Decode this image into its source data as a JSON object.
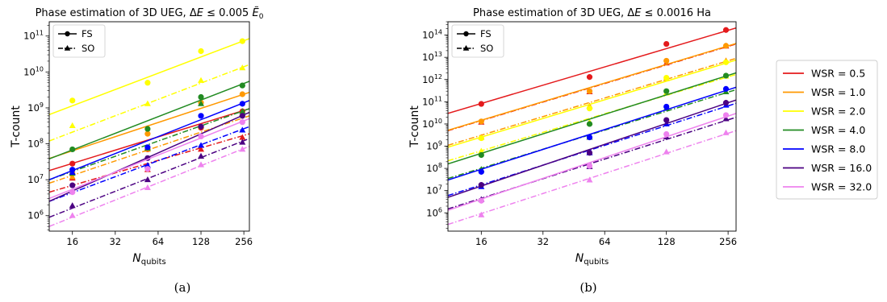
{
  "chart_data": [
    {
      "type": "scatter",
      "title": "Phase estimation of 3D UEG, ΔE ≤ 0.005 Ẽ₀",
      "title_parts": {
        "prefix": "Phase estimation of 3D UEG, ",
        "delta": "Δ",
        "var": "E",
        "rel": " ≤ 0.005",
        "sym": "E",
        "sub": "0"
      },
      "xlabel": "N",
      "xlabel_sub": "qubits",
      "ylabel": "T-count",
      "xscale": "log2",
      "yscale": "log10",
      "xlim": [
        11,
        280
      ],
      "ylim": [
        370000.0,
        250000000000.0
      ],
      "xticks": [
        16,
        32,
        64,
        128,
        256
      ],
      "yticks": [
        1000000.0,
        10000000.0,
        100000000.0,
        1000000000.0,
        10000000000.0,
        100000000000.0
      ],
      "ytick_exponents": [
        "6",
        "7",
        "8",
        "9",
        "10",
        "11"
      ],
      "ytick_base": "10",
      "legend": {
        "position": "top-left",
        "entries": [
          {
            "label": "FS",
            "style": "solid",
            "marker": "circle"
          },
          {
            "label": "SO",
            "style": "dashdot",
            "marker": "triangle"
          }
        ]
      },
      "x": [
        16,
        54,
        128,
        250
      ],
      "series": [
        {
          "name": "WSR = 0.5",
          "color": "#e41a1c",
          "FS": {
            "points": [
              28000000.0,
              70000000.0,
              280000000.0,
              800000000.0
            ],
            "fit": [
              [
                11,
                18000000.0
              ],
              [
                280,
                950000000.0
              ]
            ]
          },
          "SO": {
            "points": [
              11000000.0,
              19000000.0,
              70000000.0,
              150000000.0
            ],
            "fit": [
              [
                11,
                4500000.0
              ],
              [
                280,
                190000000.0
              ]
            ]
          }
        },
        {
          "name": "WSR = 1.0",
          "color": "#ff9900",
          "FS": {
            "points": [
              15000000.0,
              190000000.0,
              1400000000.0,
              2400000000.0
            ],
            "fit": [
              [
                11,
                39000000.0
              ],
              [
                280,
                2700000000.0
              ]
            ]
          },
          "SO": {
            "points": [
              12000000.0,
              70000000.0,
              300000000.0,
              700000000.0
            ],
            "fit": [
              [
                11,
                8000000.0
              ],
              [
                280,
                600000000.0
              ]
            ]
          }
        },
        {
          "name": "WSR = 2.0",
          "color": "#ffff00",
          "FS": {
            "points": [
              1600000000.0,
              5000000000.0,
              38000000000.0,
              72000000000.0
            ],
            "fit": [
              [
                11,
                650000000.0
              ],
              [
                280,
                85000000000.0
              ]
            ]
          },
          "SO": {
            "points": [
              320000000.0,
              1300000000.0,
              5800000000.0,
              13000000000.0
            ],
            "fit": [
              [
                11,
                120000000.0
              ],
              [
                280,
                16000000000.0
              ]
            ]
          }
        },
        {
          "name": "WSR = 4.0",
          "color": "#228b22",
          "FS": {
            "points": [
              70000000.0,
              260000000.0,
              2000000000.0,
              4200000000.0
            ],
            "fit": [
              [
                11,
                38000000.0
              ],
              [
                280,
                5500000000.0
              ]
            ]
          },
          "SO": {
            "points": [
              15000000.0,
              75000000.0,
              1300000000.0,
              800000000.0
            ],
            "fit": [
              [
                11,
                10000000.0
              ],
              [
                280,
                950000000.0
              ]
            ]
          }
        },
        {
          "name": "WSR = 8.0",
          "color": "#0000ff",
          "FS": {
            "points": [
              19000000.0,
              80000000.0,
              600000000.0,
              1300000000.0
            ],
            "fit": [
              [
                11,
                10000000.0
              ],
              [
                280,
                1600000000.0
              ]
            ]
          },
          "SO": {
            "points": [
              16000000.0,
              25000000.0,
              90000000.0,
              240000000.0
            ],
            "fit": [
              [
                11,
                2500000.0
              ],
              [
                280,
                300000000.0
              ]
            ]
          }
        },
        {
          "name": "WSR = 16.0",
          "color": "#4b0082",
          "FS": {
            "points": [
              7000000.0,
              40000000.0,
              300000000.0,
              600000000.0
            ],
            "fit": [
              [
                11,
                2500000.0
              ],
              [
                280,
                750000000.0
              ]
            ]
          },
          "SO": {
            "points": [
              1900000.0,
              10000000.0,
              45000000.0,
              110000000.0
            ],
            "fit": [
              [
                11,
                900000.0
              ],
              [
                280,
                140000000.0
              ]
            ]
          }
        },
        {
          "name": "WSR = 32.0",
          "color": "#ee82ee",
          "FS": {
            "points": [
              4500000.0,
              20000000.0,
              160000000.0,
              400000000.0
            ],
            "fit": [
              [
                11,
                3000000.0
              ],
              [
                280,
                500000000.0
              ]
            ]
          },
          "SO": {
            "points": [
              1000000.0,
              6000000.0,
              26000000.0,
              70000000.0
            ],
            "fit": [
              [
                11,
                500000.0
              ],
              [
                280,
                85000000.0
              ]
            ]
          }
        }
      ]
    },
    {
      "type": "scatter",
      "title": "Phase estimation of 3D UEG, ΔE ≤ 0.0016 Ha",
      "title_parts": {
        "prefix": "Phase estimation of 3D UEG, ",
        "delta": "Δ",
        "var": "E",
        "rel": " ≤ 0.0016 Ha"
      },
      "xlabel": "N",
      "xlabel_sub": "qubits",
      "ylabel": "T-count",
      "xscale": "log2",
      "yscale": "log10",
      "xlim": [
        11,
        280
      ],
      "ylim": [
        150000.0,
        400000000000000.0
      ],
      "xticks": [
        16,
        32,
        64,
        128,
        256
      ],
      "yticks": [
        1000000.0,
        10000000.0,
        100000000.0,
        1000000000.0,
        10000000000.0,
        100000000000.0,
        1000000000000.0,
        10000000000000.0,
        100000000000000.0
      ],
      "ytick_exponents": [
        "6",
        "7",
        "8",
        "9",
        "10",
        "11",
        "12",
        "13",
        "14"
      ],
      "ytick_base": "10",
      "legend": {
        "position": "top-left",
        "entries": [
          {
            "label": "FS",
            "style": "solid",
            "marker": "circle"
          },
          {
            "label": "SO",
            "style": "dashdot",
            "marker": "triangle"
          }
        ]
      },
      "x": [
        16,
        54,
        128,
        250
      ],
      "series": [
        {
          "name": "WSR = 0.5",
          "color": "#e41a1c",
          "FS": {
            "points": [
              80000000000.0,
              1300000000000.0,
              40000000000000.0,
              170000000000000.0
            ],
            "fit": [
              [
                11,
                30000000000.0
              ],
              [
                280,
                210000000000000.0
              ]
            ]
          },
          "SO": {
            "points": [
              12000000000.0,
              280000000000.0,
              5500000000000.0,
              32000000000000.0
            ],
            "fit": [
              [
                11,
                5000000000.0
              ],
              [
                280,
                40000000000000.0
              ]
            ]
          }
        },
        {
          "name": "WSR = 1.0",
          "color": "#ff9900",
          "FS": {
            "points": [
              13000000000.0,
              300000000000.0,
              7000000000000.0,
              33000000000000.0
            ],
            "fit": [
              [
                11,
                5200000000.0
              ],
              [
                280,
                42000000000000.0
              ]
            ]
          },
          "SO": {
            "points": [
              2500000000.0,
              65000000000.0,
              1100000000000.0,
              7000000000000.0
            ],
            "fit": [
              [
                11,
                1100000000.0
              ],
              [
                280,
                9000000000000.0
              ]
            ]
          }
        },
        {
          "name": "WSR = 2.0",
          "color": "#ffff00",
          "FS": {
            "points": [
              2300000000.0,
              50000000000.0,
              1200000000000.0,
              6000000000000.0
            ],
            "fit": [
              [
                11,
                900000000.0
              ],
              [
                280,
                7500000000000.0
              ]
            ]
          },
          "SO": {
            "points": [
              600000000.0,
              12000000000.0,
              250000000000.0,
              1400000000000.0
            ],
            "fit": [
              [
                11,
                220000000.0
              ],
              [
                280,
                1700000000000.0
              ]
            ]
          }
        },
        {
          "name": "WSR = 4.0",
          "color": "#228b22",
          "FS": {
            "points": [
              400000000.0,
              10000000000.0,
              300000000000.0,
              1500000000000.0
            ],
            "fit": [
              [
                11,
                160000000.0
              ],
              [
                280,
                2000000000000.0
              ]
            ]
          },
          "SO": {
            "points": [
              90000000.0,
              2500000000.0,
              50000000000.0,
              280000000000.0
            ],
            "fit": [
              [
                11,
                35000000.0
              ],
              [
                280,
                350000000000.0
              ]
            ]
          }
        },
        {
          "name": "WSR = 8.0",
          "color": "#0000ff",
          "FS": {
            "points": [
              70000000.0,
              2500000000.0,
              60000000000.0,
              380000000000.0
            ],
            "fit": [
              [
                11,
                30000000.0
              ],
              [
                280,
                450000000000.0
              ]
            ]
          },
          "SO": {
            "points": [
              15000000.0,
              500000000.0,
              10000000000.0,
              70000000000.0
            ],
            "fit": [
              [
                11,
                6000000.0
              ],
              [
                280,
                85000000000.0
              ]
            ]
          }
        },
        {
          "name": "WSR = 16.0",
          "color": "#4b0082",
          "FS": {
            "points": [
              18000000.0,
              500000000.0,
              15000000000.0,
              90000000000.0
            ],
            "fit": [
              [
                11,
                5000000.0
              ],
              [
                280,
                120000000000.0
              ]
            ]
          },
          "SO": {
            "points": [
              4000000.0,
              120000000.0,
              2600000000.0,
              17000000000.0
            ],
            "fit": [
              [
                11,
                1500000.0
              ],
              [
                280,
                20000000000.0
              ]
            ]
          }
        },
        {
          "name": "WSR = 32.0",
          "color": "#ee82ee",
          "FS": {
            "points": [
              3500000.0,
              130000000.0,
              3500000000.0,
              25000000000.0
            ],
            "fit": [
              [
                11,
                1300000.0
              ],
              [
                280,
                30000000000.0
              ]
            ]
          },
          "SO": {
            "points": [
              800000.0,
              30000000.0,
              550000000.0,
              4000000000.0
            ],
            "fit": [
              [
                11,
                300000.0
              ],
              [
                280,
                5000000000.0
              ]
            ]
          }
        }
      ]
    }
  ],
  "legend_wsr": [
    "WSR = 0.5",
    "WSR = 1.0",
    "WSR = 2.0",
    "WSR = 4.0",
    "WSR = 8.0",
    "WSR = 16.0",
    "WSR = 32.0"
  ],
  "legend_wsr_colors": [
    "#e41a1c",
    "#ff9900",
    "#ffff00",
    "#228b22",
    "#0000ff",
    "#4b0082",
    "#ee82ee"
  ],
  "captions": [
    "(a)",
    "(b)"
  ]
}
